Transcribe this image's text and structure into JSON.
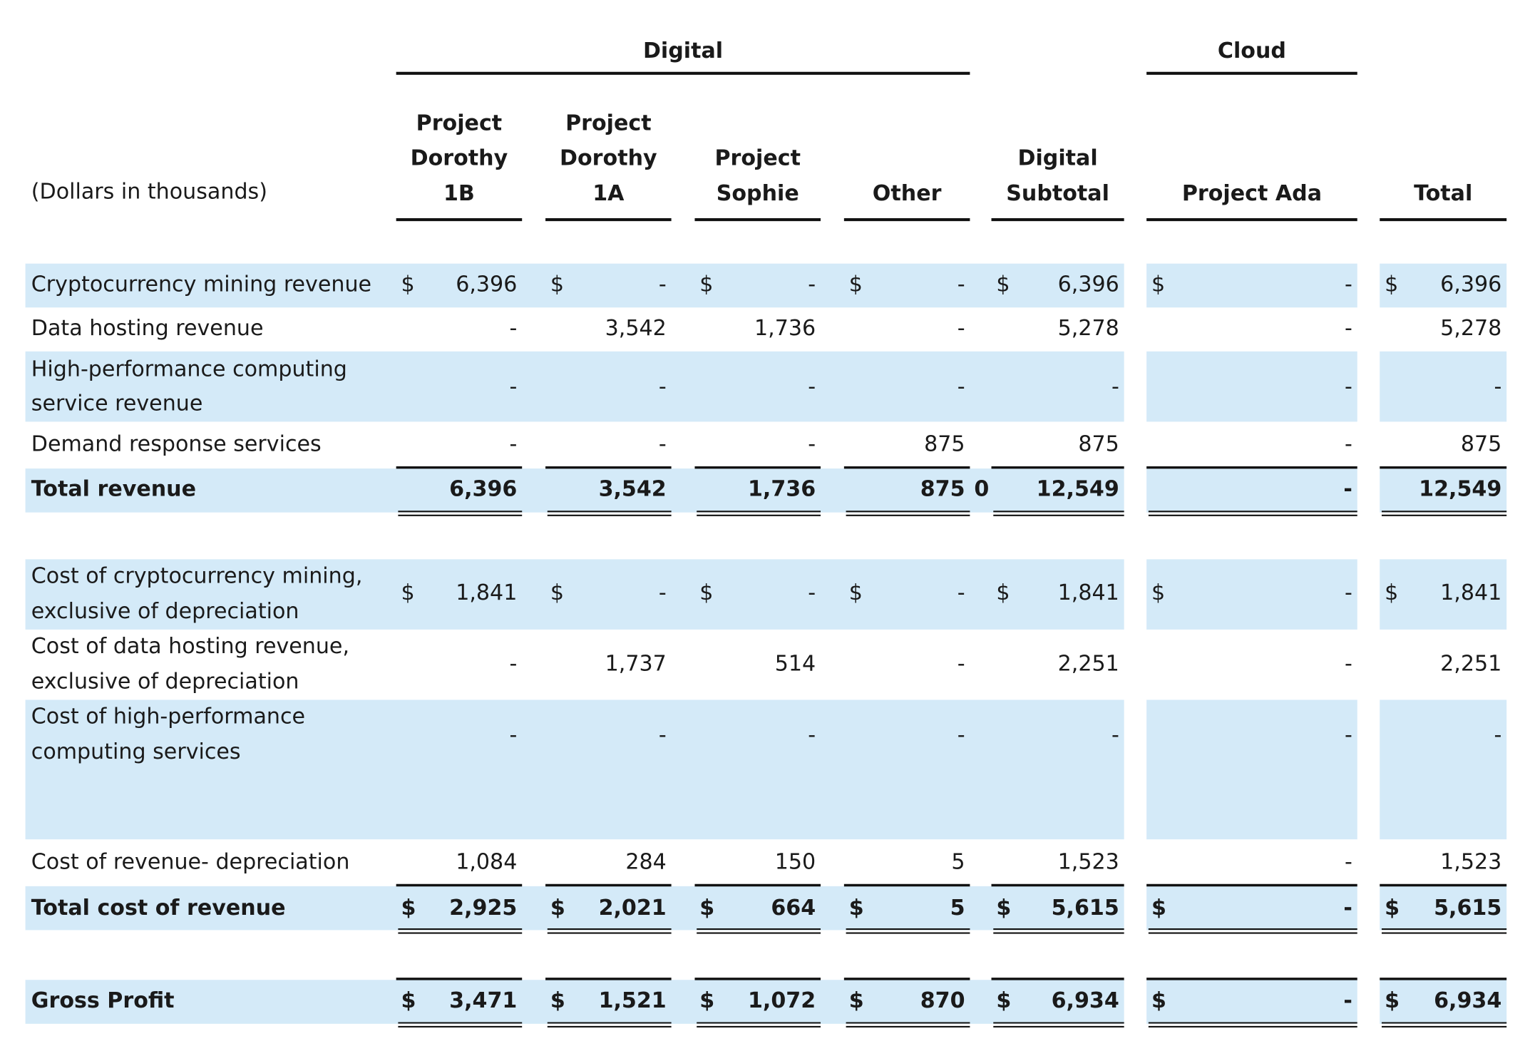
{
  "units_note": "(Dollars in thousands)",
  "currency_symbol": "$",
  "groups": [
    {
      "label": "Digital",
      "from": 0,
      "to": 3
    },
    {
      "label": "Cloud",
      "from": 5,
      "to": 5
    }
  ],
  "columns": [
    [
      "Project",
      "Dorothy",
      "1B"
    ],
    [
      "Project",
      "Dorothy",
      "1A"
    ],
    [
      "Project",
      "Sophie"
    ],
    [
      "Other"
    ],
    [
      "Digital",
      "Subtotal"
    ],
    [
      "Project Ada"
    ],
    [
      "Total"
    ]
  ],
  "rows": [
    {
      "label": [
        "Cryptocurrency mining revenue"
      ],
      "shaded": true,
      "dollar": true,
      "values": [
        "6,396",
        "-",
        "-",
        "-",
        "6,396",
        "-",
        "6,396"
      ]
    },
    {
      "label": [
        "Data hosting revenue"
      ],
      "shaded": false,
      "dollar": false,
      "values": [
        "-",
        "3,542",
        "1,736",
        "-",
        "5,278",
        "-",
        "5,278"
      ]
    },
    {
      "label": [
        "High-performance computing",
        "service revenue"
      ],
      "shaded": true,
      "dollar": false,
      "values": [
        "-",
        "-",
        "-",
        "-",
        "-",
        "-",
        "-"
      ]
    },
    {
      "label": [
        "Demand response services"
      ],
      "shaded": false,
      "dollar": false,
      "values": [
        "-",
        "-",
        "-",
        "875",
        "875",
        "-",
        "875"
      ]
    },
    {
      "label": [
        "Total revenue"
      ],
      "shaded": true,
      "dollar": false,
      "bold": true,
      "rule_top": true,
      "double_bottom": true,
      "values": [
        "6,396",
        "3,542",
        "1,736",
        "875",
        "12,549",
        "-",
        "12,549"
      ],
      "stray": "0"
    },
    {
      "label": [
        "Cost of cryptocurrency mining,",
        "exclusive of depreciation"
      ],
      "shaded": true,
      "dollar": true,
      "values": [
        "1,841",
        "-",
        "-",
        "-",
        "1,841",
        "-",
        "1,841"
      ]
    },
    {
      "label": [
        "Cost of data hosting revenue,",
        "exclusive of depreciation"
      ],
      "shaded": false,
      "dollar": false,
      "values": [
        "-",
        "1,737",
        "514",
        "-",
        "2,251",
        "-",
        "2,251"
      ]
    },
    {
      "label": [
        "Cost of high-performance",
        "computing services"
      ],
      "shaded": true,
      "dollar": false,
      "values": [
        "-",
        "-",
        "-",
        "-",
        "-",
        "-",
        "-"
      ]
    },
    {
      "label": [
        "Cost of revenue- depreciation"
      ],
      "shaded": false,
      "dollar": false,
      "values": [
        "1,084",
        "284",
        "150",
        "5",
        "1,523",
        "-",
        "1,523"
      ]
    },
    {
      "label": [
        "Total cost of revenue"
      ],
      "shaded": true,
      "dollar": true,
      "bold": true,
      "rule_top": true,
      "double_bottom": true,
      "values": [
        "2,925",
        "2,021",
        "664",
        "5",
        "5,615",
        "-",
        "5,615"
      ]
    },
    {
      "label": [
        "Gross Profit"
      ],
      "shaded": true,
      "dollar": true,
      "bold": true,
      "rule_top": true,
      "double_bottom": true,
      "values": [
        "3,471",
        "1,521",
        "1,072",
        "870",
        "6,934",
        "-",
        "6,934"
      ]
    }
  ]
}
